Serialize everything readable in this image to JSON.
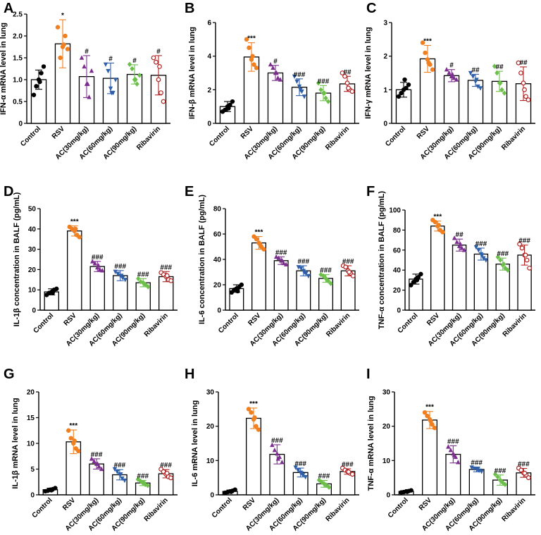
{
  "figure": {
    "categories": [
      "Control",
      "RSV",
      "AC(30mg/kg)",
      "AC(60mg/kg)",
      "AC(90mg/kg)",
      "Ribavirin"
    ],
    "colors": [
      "#000000",
      "#f07f1f",
      "#7b2e8e",
      "#2f5fa8",
      "#6cc04a",
      "#b22222"
    ],
    "markers": [
      "circle",
      "circle",
      "triangle-up",
      "triangle-down",
      "diamond",
      "circle-open"
    ]
  },
  "chart_data": [
    {
      "panel": "A",
      "type": "bar",
      "ylabel": "IFN-α mRNA level in lung",
      "ylim": [
        0,
        2.5
      ],
      "yticks": [
        0,
        0.5,
        1.0,
        1.5,
        2.0,
        2.5
      ],
      "tick_labels": [
        "0",
        "0.5",
        "1.0",
        "1.5",
        "2.0",
        "2.5"
      ],
      "values": [
        1.0,
        1.82,
        1.07,
        1.03,
        1.12,
        1.1
      ],
      "errors": [
        0.22,
        0.55,
        0.48,
        0.35,
        0.22,
        0.45
      ],
      "points": [
        [
          0.65,
          0.85,
          1.0,
          1.15,
          1.3,
          0.95
        ],
        [
          2.2,
          1.5,
          1.75,
          2.0,
          1.7,
          1.8
        ],
        [
          1.5,
          1.3,
          0.9,
          0.6,
          1.2,
          0.9
        ],
        [
          1.35,
          1.2,
          0.8,
          0.7,
          1.0,
          0.7
        ],
        [
          1.35,
          1.25,
          1.0,
          0.9,
          1.1,
          1.0
        ],
        [
          1.5,
          1.4,
          1.0,
          0.7,
          0.5,
          1.3
        ]
      ],
      "significance": [
        "",
        "*",
        "#",
        "#",
        "#",
        "#"
      ]
    },
    {
      "panel": "B",
      "type": "bar",
      "ylabel": "IFN-β mRNA level in lung",
      "ylim": [
        0,
        6
      ],
      "yticks": [
        0,
        2,
        4,
        6
      ],
      "tick_labels": [
        "0",
        "2",
        "4",
        "6"
      ],
      "values": [
        1.0,
        3.95,
        3.0,
        2.15,
        1.8,
        2.35
      ],
      "errors": [
        0.3,
        0.85,
        0.45,
        0.5,
        0.45,
        0.45
      ],
      "points": [
        [
          0.7,
          0.8,
          1.0,
          1.1,
          1.3,
          0.9
        ],
        [
          5.0,
          4.5,
          3.8,
          3.5,
          3.3,
          4.0
        ],
        [
          3.5,
          3.3,
          3.0,
          2.7,
          2.6,
          3.0
        ],
        [
          2.8,
          2.5,
          2.2,
          1.9,
          1.6,
          2.0
        ],
        [
          2.4,
          2.0,
          1.8,
          1.5,
          1.3,
          1.8
        ],
        [
          3.0,
          2.8,
          2.4,
          2.0,
          1.9,
          2.1
        ]
      ],
      "significance": [
        "",
        "***",
        "#",
        "###",
        "###",
        "##"
      ]
    },
    {
      "panel": "C",
      "type": "bar",
      "ylabel": "IFN-γ mRNA level in lung",
      "ylim": [
        0,
        3
      ],
      "yticks": [
        0,
        1,
        2,
        3
      ],
      "tick_labels": [
        "0",
        "1",
        "2",
        "3"
      ],
      "values": [
        1.0,
        1.92,
        1.42,
        1.28,
        1.25,
        1.18
      ],
      "errors": [
        0.22,
        0.4,
        0.18,
        0.18,
        0.3,
        0.5
      ],
      "points": [
        [
          0.8,
          0.9,
          1.0,
          1.05,
          1.15,
          1.3
        ],
        [
          2.4,
          2.1,
          1.9,
          1.75,
          1.6,
          1.8
        ],
        [
          1.6,
          1.5,
          1.4,
          1.35,
          1.3,
          1.45
        ],
        [
          1.5,
          1.4,
          1.25,
          1.1,
          1.05,
          1.3
        ],
        [
          1.7,
          1.5,
          1.2,
          1.0,
          0.9,
          1.2
        ],
        [
          1.8,
          1.5,
          1.2,
          0.8,
          0.7,
          1.0
        ]
      ],
      "significance": [
        "",
        "***",
        "#",
        "##",
        "##",
        "##"
      ]
    },
    {
      "panel": "D",
      "type": "bar",
      "ylabel": "IL-1β concentration in BALF (pg/mL)",
      "ylim": [
        0,
        50
      ],
      "yticks": [
        0,
        10,
        20,
        30,
        40,
        50
      ],
      "tick_labels": [
        "0",
        "10",
        "20",
        "30",
        "40",
        "50"
      ],
      "values": [
        9,
        39,
        21.5,
        17,
        13.5,
        16.5
      ],
      "errors": [
        1.5,
        2.5,
        2.5,
        2.5,
        2.0,
        2.5
      ],
      "points": [
        [
          7.5,
          8.5,
          9.0,
          10.0,
          10.5,
          8.5
        ],
        [
          41,
          40,
          39,
          37,
          36,
          40
        ],
        [
          24,
          23,
          21,
          20,
          19.5,
          22
        ],
        [
          19,
          18,
          17,
          16,
          15,
          17
        ],
        [
          15.5,
          14,
          13.5,
          12.5,
          11.5,
          13
        ],
        [
          18.5,
          17.5,
          16.5,
          15,
          14.5,
          17
        ]
      ],
      "significance": [
        "",
        "***",
        "###",
        "###",
        "###",
        "###"
      ]
    },
    {
      "panel": "E",
      "type": "bar",
      "ylabel": "IL-6 concentration in BALF (pg/mL)",
      "ylim": [
        0,
        80
      ],
      "yticks": [
        0,
        20,
        40,
        60,
        80
      ],
      "tick_labels": [
        "0",
        "20",
        "40",
        "60",
        "80"
      ],
      "values": [
        17,
        53,
        39,
        31,
        25,
        31
      ],
      "errors": [
        3,
        5,
        3,
        4,
        3,
        4
      ],
      "points": [
        [
          14,
          16,
          17,
          18,
          20,
          15
        ],
        [
          58,
          56,
          53,
          50,
          48,
          52
        ],
        [
          42,
          41,
          39,
          37,
          36,
          39
        ],
        [
          34,
          33,
          31,
          29,
          27,
          30
        ],
        [
          28,
          27,
          25,
          23,
          21,
          24
        ],
        [
          35,
          34,
          31,
          29,
          27,
          30
        ]
      ],
      "significance": [
        "",
        "***",
        "###",
        "###",
        "###",
        "###"
      ]
    },
    {
      "panel": "F",
      "type": "bar",
      "ylabel": "TNF-α concentration in BALF (pg/mL)",
      "ylim": [
        0,
        100
      ],
      "yticks": [
        0,
        20,
        40,
        60,
        80,
        100
      ],
      "tick_labels": [
        "0",
        "20",
        "40",
        "60",
        "80",
        "100"
      ],
      "values": [
        31,
        84,
        65,
        56,
        46,
        55
      ],
      "errors": [
        5,
        5,
        6,
        6,
        6,
        10
      ],
      "points": [
        [
          25,
          28,
          31,
          33,
          36,
          30
        ],
        [
          90,
          88,
          84,
          80,
          78,
          85
        ],
        [
          72,
          68,
          64,
          62,
          60,
          66
        ],
        [
          63,
          60,
          56,
          52,
          50,
          55
        ],
        [
          53,
          50,
          45,
          42,
          40,
          46
        ],
        [
          66,
          62,
          55,
          50,
          42,
          55
        ]
      ],
      "significance": [
        "",
        "***",
        "##",
        "###",
        "###",
        "###"
      ]
    },
    {
      "panel": "G",
      "type": "bar",
      "ylabel": "IL-1β mRNA level in lung",
      "ylim": [
        0,
        20
      ],
      "yticks": [
        0,
        5,
        10,
        15,
        20
      ],
      "tick_labels": [
        "0",
        "5",
        "10",
        "15",
        "20"
      ],
      "values": [
        1.0,
        10.3,
        6.0,
        3.9,
        2.3,
        4.1
      ],
      "errors": [
        0.3,
        2.3,
        1.0,
        1.0,
        0.5,
        0.8
      ],
      "points": [
        [
          0.7,
          0.8,
          1.0,
          1.1,
          1.3,
          0.9
        ],
        [
          12.5,
          11,
          10,
          9,
          8.5,
          10.5
        ],
        [
          7,
          6.5,
          6,
          5.5,
          5,
          6
        ],
        [
          5,
          4.5,
          4,
          3.2,
          2.8,
          4
        ],
        [
          3,
          2.7,
          2.3,
          2.0,
          1.8,
          2.4
        ],
        [
          5,
          4.5,
          4,
          3.5,
          3.3,
          4.2
        ]
      ],
      "significance": [
        "",
        "***",
        "###",
        "###",
        "###",
        "###"
      ]
    },
    {
      "panel": "H",
      "type": "bar",
      "ylabel": "IL-6 mRNA level in lung",
      "ylim": [
        0,
        30
      ],
      "yticks": [
        0,
        10,
        20,
        30
      ],
      "tick_labels": [
        "0",
        "10",
        "20",
        "30"
      ],
      "values": [
        1.0,
        22.3,
        11.8,
        6.5,
        3.2,
        6.8
      ],
      "errors": [
        0.4,
        3.0,
        2.8,
        1.3,
        1.0,
        0.8
      ],
      "points": [
        [
          0.6,
          0.8,
          1.0,
          1.2,
          1.5,
          0.9
        ],
        [
          25,
          24,
          22,
          20,
          19,
          22.5
        ],
        [
          14.5,
          13,
          12,
          11,
          9.5,
          10.5
        ],
        [
          8,
          7.2,
          6.5,
          5.8,
          5.2,
          6.3
        ],
        [
          4.3,
          3.7,
          3.2,
          2.8,
          2.2,
          3.0
        ],
        [
          7.8,
          7.2,
          6.8,
          6.3,
          6.0,
          6.7
        ]
      ],
      "significance": [
        "",
        "***",
        "###",
        "###",
        "###",
        "###"
      ]
    },
    {
      "panel": "I",
      "type": "bar",
      "ylabel": "TNF-α mRNA level in lung",
      "ylim": [
        0,
        30
      ],
      "yticks": [
        0,
        10,
        20,
        30
      ],
      "tick_labels": [
        "0",
        "10",
        "20",
        "30"
      ],
      "values": [
        1.0,
        21.8,
        11.8,
        7.4,
        4.3,
        6.4
      ],
      "errors": [
        0.3,
        2.5,
        2.5,
        0.7,
        1.5,
        1.3
      ],
      "points": [
        [
          0.7,
          0.8,
          1.0,
          1.1,
          1.3,
          0.9
        ],
        [
          24,
          23,
          22,
          20.5,
          19.5,
          21.5
        ],
        [
          14,
          13,
          12,
          11,
          9.5,
          11.5
        ],
        [
          8,
          7.7,
          7.4,
          7.1,
          6.8,
          7.5
        ],
        [
          6,
          5.2,
          4.3,
          3.6,
          3.0,
          4.0
        ],
        [
          7.8,
          7.2,
          6.4,
          5.8,
          5.0,
          6.3
        ]
      ],
      "significance": [
        "",
        "***",
        "###",
        "###",
        "###",
        "###"
      ]
    }
  ]
}
